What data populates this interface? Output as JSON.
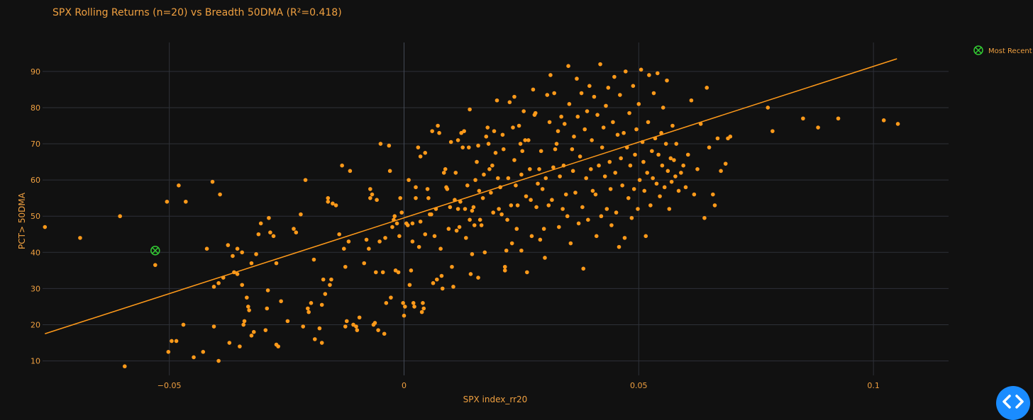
{
  "chart_data": {
    "type": "scatter",
    "title": "SPX Rolling Returns (n=20) vs Breadth 50DMA (R²=0.418)",
    "xlabel": "SPX index_rr20",
    "ylabel": "PCT> 50DMA",
    "xlim": [
      -0.077,
      0.116
    ],
    "ylim": [
      6,
      98
    ],
    "x_ticks": [
      -0.05,
      0,
      0.05,
      0.1
    ],
    "x_tick_labels": [
      "−0.05",
      "0",
      "0.05",
      "0.1"
    ],
    "y_ticks": [
      10,
      20,
      30,
      40,
      50,
      60,
      70,
      80,
      90
    ],
    "y_tick_labels": [
      "10",
      "20",
      "30",
      "40",
      "50",
      "60",
      "70",
      "80",
      "90"
    ],
    "grid": true,
    "legend_placement": "top-right",
    "colors": {
      "background": "#111111",
      "points": "#ff9a1a",
      "trendline": "#ff9a1a",
      "grid": "#2e3138",
      "zero_line": "#454b57",
      "text": "#f0a040",
      "most_recent": "#33cc33",
      "nav_button": "#1a8cff"
    },
    "trendline": {
      "x": [
        -0.0765,
        0.105
      ],
      "y": [
        17.5,
        93.5
      ]
    },
    "most_recent": {
      "name": "Most Recent",
      "x": -0.053,
      "y": 40.5
    },
    "points": [
      [
        -0.0765,
        47
      ],
      [
        -0.069,
        44
      ],
      [
        -0.0605,
        50
      ],
      [
        -0.0595,
        8.5
      ],
      [
        -0.053,
        36.5
      ],
      [
        -0.0505,
        54
      ],
      [
        -0.0502,
        12.5
      ],
      [
        -0.0495,
        15.5
      ],
      [
        -0.0485,
        15.5
      ],
      [
        -0.048,
        58.5
      ],
      [
        -0.047,
        20
      ],
      [
        -0.0465,
        54
      ],
      [
        -0.0448,
        11
      ],
      [
        -0.0428,
        12.5
      ],
      [
        -0.042,
        41
      ],
      [
        -0.0408,
        59.5
      ],
      [
        -0.0405,
        30.5
      ],
      [
        -0.0405,
        19.5
      ],
      [
        -0.0395,
        31.5
      ],
      [
        -0.0395,
        10
      ],
      [
        -0.0392,
        56
      ],
      [
        -0.0385,
        33
      ],
      [
        -0.0375,
        42
      ],
      [
        -0.0372,
        15
      ],
      [
        -0.0365,
        39
      ],
      [
        -0.0362,
        34.5
      ],
      [
        -0.0355,
        34
      ],
      [
        -0.0355,
        41
      ],
      [
        -0.035,
        14
      ],
      [
        -0.0345,
        40
      ],
      [
        -0.0345,
        31
      ],
      [
        -0.0342,
        20
      ],
      [
        -0.034,
        21
      ],
      [
        -0.0335,
        27.5
      ],
      [
        -0.0332,
        25
      ],
      [
        -0.033,
        24
      ],
      [
        -0.0325,
        37
      ],
      [
        -0.0325,
        17
      ],
      [
        -0.032,
        18
      ],
      [
        -0.0315,
        39.5
      ],
      [
        -0.031,
        45
      ],
      [
        -0.0305,
        48
      ],
      [
        -0.0295,
        18.5
      ],
      [
        -0.0292,
        24.5
      ],
      [
        -0.029,
        29.5
      ],
      [
        -0.0288,
        49.5
      ],
      [
        -0.0285,
        45.5
      ],
      [
        -0.0278,
        44.5
      ],
      [
        -0.0272,
        37
      ],
      [
        -0.0272,
        14.5
      ],
      [
        -0.0268,
        14
      ],
      [
        -0.0262,
        26.5
      ],
      [
        -0.0248,
        21
      ],
      [
        -0.0235,
        46.5
      ],
      [
        -0.023,
        45.5
      ],
      [
        -0.022,
        50.5
      ],
      [
        -0.0215,
        19.5
      ],
      [
        -0.021,
        60
      ],
      [
        -0.0205,
        24.5
      ],
      [
        -0.0203,
        23.5
      ],
      [
        -0.0198,
        26
      ],
      [
        -0.0192,
        38
      ],
      [
        -0.019,
        16
      ],
      [
        -0.018,
        19
      ],
      [
        -0.0175,
        15
      ],
      [
        -0.0175,
        25.5
      ],
      [
        -0.0172,
        32.5
      ],
      [
        -0.0168,
        28.5
      ],
      [
        -0.0162,
        55
      ],
      [
        -0.0162,
        54
      ],
      [
        -0.0158,
        31
      ],
      [
        -0.0155,
        32.5
      ],
      [
        -0.0152,
        53.5
      ],
      [
        -0.0145,
        53
      ],
      [
        -0.0138,
        45
      ],
      [
        -0.0132,
        64
      ],
      [
        -0.0128,
        41
      ],
      [
        -0.0125,
        36
      ],
      [
        -0.0125,
        19.5
      ],
      [
        -0.0122,
        21
      ],
      [
        -0.0118,
        43
      ],
      [
        -0.0115,
        62.5
      ],
      [
        -0.0108,
        20
      ],
      [
        -0.0102,
        19.5
      ],
      [
        -0.01,
        18.5
      ],
      [
        -0.0095,
        22
      ],
      [
        -0.0085,
        37
      ],
      [
        -0.008,
        43.5
      ],
      [
        -0.0075,
        41
      ],
      [
        -0.0072,
        55
      ],
      [
        -0.0072,
        57.5
      ],
      [
        -0.0068,
        56
      ],
      [
        -0.0065,
        20
      ],
      [
        -0.0062,
        20.5
      ],
      [
        -0.006,
        34.5
      ],
      [
        -0.0058,
        54.5
      ],
      [
        -0.0055,
        18.5
      ],
      [
        -0.0052,
        43
      ],
      [
        -0.005,
        70
      ],
      [
        -0.0045,
        34.5
      ],
      [
        -0.0042,
        17.5
      ],
      [
        -0.004,
        44
      ],
      [
        -0.0038,
        26
      ],
      [
        -0.0032,
        69.5
      ],
      [
        -0.003,
        62.5
      ],
      [
        -0.0028,
        27.5
      ],
      [
        -0.0025,
        47
      ],
      [
        -0.0022,
        49
      ],
      [
        -0.002,
        50
      ],
      [
        -0.0018,
        35
      ],
      [
        -0.0015,
        48
      ],
      [
        -0.0012,
        34.5
      ],
      [
        -0.001,
        44.5
      ],
      [
        -0.0008,
        55
      ],
      [
        -0.0005,
        51
      ],
      [
        -0.0002,
        26
      ],
      [
        0,
        22.5
      ],
      [
        0.0002,
        25
      ],
      [
        0.0005,
        48
      ],
      [
        0.0008,
        47.5
      ],
      [
        0.001,
        60
      ],
      [
        0.0012,
        31
      ],
      [
        0.0015,
        35
      ],
      [
        0.0018,
        48
      ],
      [
        0.0018,
        43
      ],
      [
        0.002,
        26
      ],
      [
        0.0022,
        25
      ],
      [
        0.0025,
        58
      ],
      [
        0.0025,
        55
      ],
      [
        0.003,
        69
      ],
      [
        0.0032,
        41.5
      ],
      [
        0.0035,
        66.5
      ],
      [
        0.0035,
        48.5
      ],
      [
        0.0038,
        23.5
      ],
      [
        0.004,
        26
      ],
      [
        0.0042,
        24.5
      ],
      [
        0.0045,
        67.5
      ],
      [
        0.0045,
        45
      ],
      [
        0.005,
        57.5
      ],
      [
        0.0052,
        55
      ],
      [
        0.0055,
        50.5
      ],
      [
        0.0058,
        50.5
      ],
      [
        0.006,
        73.5
      ],
      [
        0.0062,
        31.5
      ],
      [
        0.0065,
        44.5
      ],
      [
        0.0068,
        52
      ],
      [
        0.007,
        32.5
      ],
      [
        0.0072,
        75
      ],
      [
        0.0075,
        73
      ],
      [
        0.0078,
        41
      ],
      [
        0.008,
        33.5
      ],
      [
        0.0082,
        30
      ],
      [
        0.0085,
        62
      ],
      [
        0.0088,
        63
      ],
      [
        0.009,
        58
      ],
      [
        0.0092,
        57.5
      ],
      [
        0.0095,
        46.5
      ],
      [
        0.0098,
        52.5
      ],
      [
        0.01,
        70.5
      ],
      [
        0.0102,
        36
      ],
      [
        0.0105,
        30.5
      ],
      [
        0.0108,
        54.5
      ],
      [
        0.011,
        62
      ],
      [
        0.0112,
        46
      ],
      [
        0.0115,
        71
      ],
      [
        0.0115,
        52
      ],
      [
        0.0118,
        47
      ],
      [
        0.012,
        54
      ],
      [
        0.0122,
        73
      ],
      [
        0.0125,
        69
      ],
      [
        0.0128,
        73.5
      ],
      [
        0.013,
        52
      ],
      [
        0.0132,
        44
      ],
      [
        0.0135,
        58.5
      ],
      [
        0.0138,
        69
      ],
      [
        0.014,
        79.5
      ],
      [
        0.014,
        49
      ],
      [
        0.0142,
        34
      ],
      [
        0.0145,
        51.5
      ],
      [
        0.0148,
        52.5
      ],
      [
        0.015,
        47.5
      ],
      [
        0.0152,
        60
      ],
      [
        0.0155,
        65
      ],
      [
        0.0158,
        69.5
      ],
      [
        0.016,
        57
      ],
      [
        0.0162,
        49
      ],
      [
        0.0165,
        47.5
      ],
      [
        0.0168,
        55
      ],
      [
        0.017,
        61.5
      ],
      [
        0.0172,
        40
      ],
      [
        0.0175,
        72
      ],
      [
        0.0178,
        74.5
      ],
      [
        0.018,
        70
      ],
      [
        0.0182,
        63
      ],
      [
        0.0185,
        56.5
      ],
      [
        0.0188,
        64
      ],
      [
        0.019,
        51
      ],
      [
        0.0192,
        73.5
      ],
      [
        0.0195,
        67.5
      ],
      [
        0.0198,
        82
      ],
      [
        0.02,
        60.5
      ],
      [
        0.0202,
        52
      ],
      [
        0.0205,
        58
      ],
      [
        0.0208,
        50.5
      ],
      [
        0.021,
        72.5
      ],
      [
        0.0212,
        68.5
      ],
      [
        0.0215,
        36
      ],
      [
        0.0218,
        40.5
      ],
      [
        0.022,
        49
      ],
      [
        0.0222,
        60.5
      ],
      [
        0.0225,
        81.5
      ],
      [
        0.0228,
        53
      ],
      [
        0.023,
        42.5
      ],
      [
        0.0232,
        74.5
      ],
      [
        0.0235,
        83
      ],
      [
        0.0235,
        65.5
      ],
      [
        0.0238,
        58.5
      ],
      [
        0.024,
        46.5
      ],
      [
        0.0242,
        53
      ],
      [
        0.0245,
        75
      ],
      [
        0.0248,
        70
      ],
      [
        0.025,
        40.5
      ],
      [
        0.025,
        61.5
      ],
      [
        0.0252,
        68
      ],
      [
        0.0255,
        79
      ],
      [
        0.0258,
        71
      ],
      [
        0.026,
        55.5
      ],
      [
        0.0262,
        34.5
      ],
      [
        0.0265,
        71
      ],
      [
        0.0268,
        63
      ],
      [
        0.027,
        54.5
      ],
      [
        0.0272,
        44.5
      ],
      [
        0.0275,
        85
      ],
      [
        0.0278,
        78
      ],
      [
        0.028,
        78.5
      ],
      [
        0.0282,
        52.5
      ],
      [
        0.0285,
        59
      ],
      [
        0.0288,
        63
      ],
      [
        0.029,
        43.5
      ],
      [
        0.0292,
        68
      ],
      [
        0.0295,
        57.5
      ],
      [
        0.0298,
        46.5
      ],
      [
        0.03,
        38.5
      ],
      [
        0.0302,
        60.5
      ],
      [
        0.0305,
        83.5
      ],
      [
        0.0308,
        53
      ],
      [
        0.031,
        76
      ],
      [
        0.0312,
        89
      ],
      [
        0.0315,
        54.5
      ],
      [
        0.0318,
        63.5
      ],
      [
        0.032,
        84
      ],
      [
        0.0322,
        68.5
      ],
      [
        0.0325,
        70
      ],
      [
        0.0328,
        73.5
      ],
      [
        0.033,
        47
      ],
      [
        0.0332,
        61
      ],
      [
        0.0335,
        77.5
      ],
      [
        0.0338,
        52
      ],
      [
        0.034,
        64
      ],
      [
        0.0342,
        75.5
      ],
      [
        0.0345,
        56
      ],
      [
        0.0348,
        50
      ],
      [
        0.035,
        91.5
      ],
      [
        0.0352,
        81
      ],
      [
        0.0355,
        42.5
      ],
      [
        0.0358,
        68.5
      ],
      [
        0.036,
        62.5
      ],
      [
        0.0362,
        72
      ],
      [
        0.0365,
        56.5
      ],
      [
        0.0368,
        88
      ],
      [
        0.037,
        77.5
      ],
      [
        0.0372,
        48
      ],
      [
        0.0375,
        66.5
      ],
      [
        0.0378,
        84
      ],
      [
        0.038,
        52.5
      ],
      [
        0.0382,
        35.5
      ],
      [
        0.0385,
        74
      ],
      [
        0.0388,
        60.5
      ],
      [
        0.039,
        79
      ],
      [
        0.0392,
        49
      ],
      [
        0.0395,
        86
      ],
      [
        0.0398,
        63
      ],
      [
        0.04,
        71
      ],
      [
        0.0402,
        57
      ],
      [
        0.0405,
        83
      ],
      [
        0.0408,
        56
      ],
      [
        0.041,
        44.5
      ],
      [
        0.0412,
        78
      ],
      [
        0.0415,
        64
      ],
      [
        0.0418,
        92
      ],
      [
        0.042,
        50
      ],
      [
        0.0422,
        69
      ],
      [
        0.0425,
        74.5
      ],
      [
        0.0428,
        61
      ],
      [
        0.043,
        80.5
      ],
      [
        0.0432,
        52
      ],
      [
        0.0435,
        85.5
      ],
      [
        0.0438,
        65
      ],
      [
        0.044,
        57.5
      ],
      [
        0.0442,
        47.5
      ],
      [
        0.0445,
        76
      ],
      [
        0.0448,
        88.5
      ],
      [
        0.045,
        62
      ],
      [
        0.0452,
        51
      ],
      [
        0.0455,
        72.5
      ],
      [
        0.0458,
        41.5
      ],
      [
        0.046,
        83.5
      ],
      [
        0.0462,
        66
      ],
      [
        0.0465,
        58.5
      ],
      [
        0.0468,
        73
      ],
      [
        0.047,
        44
      ],
      [
        0.0472,
        90
      ],
      [
        0.0475,
        69
      ],
      [
        0.0478,
        55
      ],
      [
        0.048,
        78.5
      ],
      [
        0.0482,
        64
      ],
      [
        0.0485,
        49.5
      ],
      [
        0.0488,
        86
      ],
      [
        0.049,
        57.5
      ],
      [
        0.0492,
        67
      ],
      [
        0.0495,
        74
      ],
      [
        0.0498,
        52
      ],
      [
        0.05,
        81
      ],
      [
        0.0502,
        60
      ],
      [
        0.0505,
        90.5
      ],
      [
        0.0508,
        70.5
      ],
      [
        0.051,
        65
      ],
      [
        0.0512,
        57
      ],
      [
        0.0515,
        44.5
      ],
      [
        0.0518,
        62
      ],
      [
        0.052,
        76
      ],
      [
        0.0522,
        89
      ],
      [
        0.0525,
        53
      ],
      [
        0.0528,
        68
      ],
      [
        0.053,
        60.5
      ],
      [
        0.0532,
        84
      ],
      [
        0.0535,
        71.5
      ],
      [
        0.0538,
        59
      ],
      [
        0.054,
        89.5
      ],
      [
        0.0542,
        67
      ],
      [
        0.0545,
        55.5
      ],
      [
        0.0548,
        73
      ],
      [
        0.055,
        64
      ],
      [
        0.0552,
        80
      ],
      [
        0.0555,
        58
      ],
      [
        0.0558,
        70
      ],
      [
        0.056,
        87.5
      ],
      [
        0.0562,
        62.5
      ],
      [
        0.0565,
        52
      ],
      [
        0.0568,
        66
      ],
      [
        0.057,
        59.5
      ],
      [
        0.0572,
        75
      ],
      [
        0.0575,
        65.5
      ],
      [
        0.0578,
        61
      ],
      [
        0.058,
        70
      ],
      [
        0.0585,
        57
      ],
      [
        0.059,
        62
      ],
      [
        0.0595,
        64
      ],
      [
        0.06,
        58
      ],
      [
        0.0605,
        67
      ],
      [
        0.0612,
        82
      ],
      [
        0.0618,
        56
      ],
      [
        0.0625,
        63
      ],
      [
        0.0632,
        75.5
      ],
      [
        0.064,
        49.5
      ],
      [
        0.0645,
        85.5
      ],
      [
        0.065,
        69
      ],
      [
        0.0658,
        56
      ],
      [
        0.0662,
        53
      ],
      [
        0.0668,
        71.5
      ],
      [
        0.0675,
        62.5
      ],
      [
        0.0685,
        64.5
      ],
      [
        0.069,
        71.5
      ],
      [
        0.0695,
        72
      ],
      [
        0.0775,
        80
      ],
      [
        0.0785,
        73.5
      ],
      [
        0.085,
        77
      ],
      [
        0.0882,
        74.5
      ],
      [
        0.0925,
        77
      ],
      [
        0.1022,
        76.5
      ],
      [
        0.1052,
        75.5
      ],
      [
        0.0215,
        35
      ],
      [
        0.0158,
        33
      ],
      [
        0.0145,
        39.5
      ]
    ]
  },
  "nav_button_icon": "code-arrows-icon"
}
